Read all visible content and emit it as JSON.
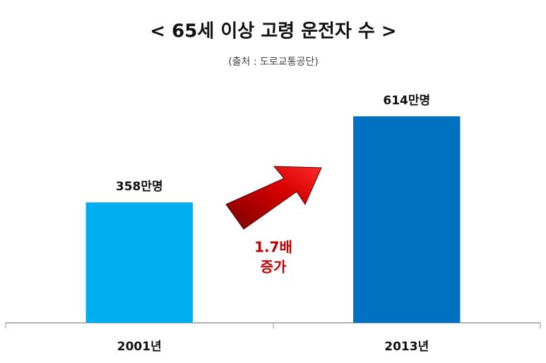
{
  "chart_data": {
    "type": "bar",
    "title": "< 65세 이상 고령 운전자 수 >",
    "subtitle": "(출처 : 도로교통공단)",
    "categories": [
      "2001년",
      "2013년"
    ],
    "values": [
      358,
      614
    ],
    "value_labels": [
      "358만명",
      "614만명"
    ],
    "colors": [
      "#00aeef",
      "#0070c0"
    ],
    "ylim": [
      0,
      700
    ],
    "annotations": [
      "1.7배",
      "증가"
    ]
  }
}
